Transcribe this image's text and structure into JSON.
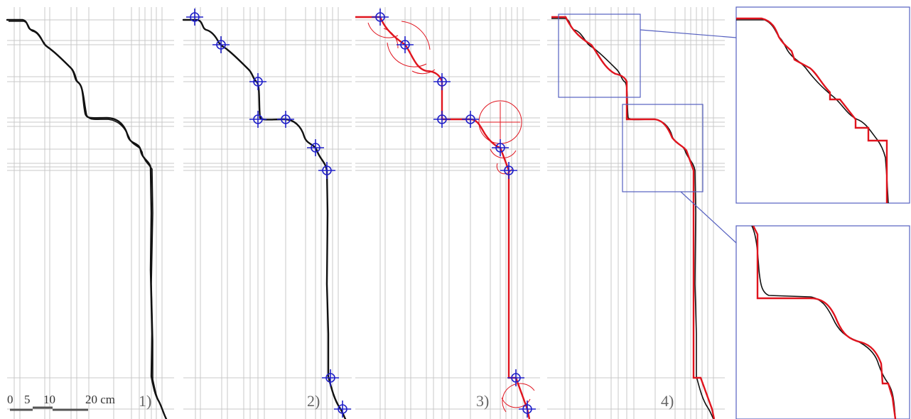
{
  "panels": [
    {
      "label": "1)"
    },
    {
      "label": "2)"
    },
    {
      "label": "3)"
    },
    {
      "label": "4)"
    }
  ],
  "scale_bar": {
    "ticks": [
      "0",
      "5",
      "10",
      "20 cm"
    ]
  },
  "colors": {
    "profile": "#111111",
    "fit": "#e0141e",
    "markers": "#2020c8",
    "zoom_frames": "#5560c0",
    "grid": "#c8c8c8"
  }
}
